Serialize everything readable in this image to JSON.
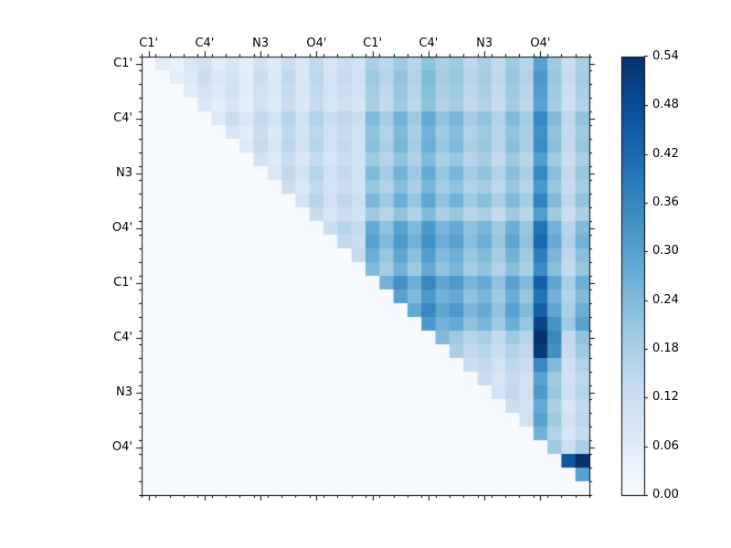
{
  "figure": {
    "background": "#ffffff",
    "axis_color": "#000000"
  },
  "chart_data": {
    "type": "heatmap",
    "title": "",
    "xlabel": "",
    "ylabel": "",
    "grid": false,
    "legend_position": "colorbar-right",
    "x_tick_labels": [
      "C1'",
      "C4'",
      "N3",
      "O4'",
      "C1'",
      "C4'",
      "N3",
      "O4'"
    ],
    "y_tick_labels": [
      "C1'",
      "C4'",
      "N3",
      "O4'",
      "C1'",
      "C4'",
      "N3",
      "O4'"
    ],
    "n_cells": 32,
    "vmin": 0.0,
    "vmax": 0.54,
    "colormap_name": "Blues",
    "colormap_stops": [
      [
        0.0,
        "#f7fbff"
      ],
      [
        0.125,
        "#deebf7"
      ],
      [
        0.25,
        "#c6dbef"
      ],
      [
        0.375,
        "#9ecae1"
      ],
      [
        0.5,
        "#6baed6"
      ],
      [
        0.625,
        "#4292c6"
      ],
      [
        0.75,
        "#2171b5"
      ],
      [
        0.875,
        "#08519c"
      ],
      [
        1.0,
        "#08306b"
      ]
    ],
    "colorbar_tick_labels": [
      "0.00",
      "0.06",
      "0.12",
      "0.18",
      "0.24",
      "0.30",
      "0.36",
      "0.42",
      "0.48",
      "0.54"
    ],
    "matrix": [
      [
        0,
        0.06,
        0.04,
        0.08,
        0.1,
        0.06,
        0.09,
        0.05,
        0.1,
        0.07,
        0.12,
        0.08,
        0.14,
        0.09,
        0.12,
        0.1,
        0.18,
        0.15,
        0.2,
        0.16,
        0.22,
        0.18,
        0.2,
        0.15,
        0.18,
        0.14,
        0.2,
        0.16,
        0.3,
        0.2,
        0.12,
        0.18
      ],
      [
        0,
        0,
        0.05,
        0.07,
        0.12,
        0.08,
        0.1,
        0.06,
        0.12,
        0.08,
        0.14,
        0.09,
        0.15,
        0.1,
        0.13,
        0.11,
        0.2,
        0.16,
        0.22,
        0.17,
        0.24,
        0.19,
        0.21,
        0.16,
        0.19,
        0.15,
        0.21,
        0.17,
        0.32,
        0.21,
        0.13,
        0.19
      ],
      [
        0,
        0,
        0,
        0.06,
        0.1,
        0.07,
        0.11,
        0.06,
        0.11,
        0.08,
        0.13,
        0.09,
        0.14,
        0.1,
        0.12,
        0.1,
        0.19,
        0.15,
        0.21,
        0.16,
        0.23,
        0.18,
        0.2,
        0.15,
        0.18,
        0.14,
        0.2,
        0.16,
        0.31,
        0.2,
        0.12,
        0.18
      ],
      [
        0,
        0,
        0,
        0,
        0.08,
        0.05,
        0.09,
        0.05,
        0.1,
        0.07,
        0.12,
        0.08,
        0.13,
        0.09,
        0.11,
        0.09,
        0.18,
        0.14,
        0.2,
        0.15,
        0.22,
        0.17,
        0.19,
        0.14,
        0.17,
        0.13,
        0.19,
        0.15,
        0.3,
        0.19,
        0.11,
        0.17
      ],
      [
        0,
        0,
        0,
        0,
        0,
        0.07,
        0.12,
        0.08,
        0.14,
        0.1,
        0.16,
        0.11,
        0.17,
        0.12,
        0.15,
        0.12,
        0.24,
        0.19,
        0.26,
        0.2,
        0.28,
        0.22,
        0.25,
        0.19,
        0.22,
        0.17,
        0.24,
        0.19,
        0.36,
        0.24,
        0.15,
        0.22
      ],
      [
        0,
        0,
        0,
        0,
        0,
        0,
        0.09,
        0.06,
        0.12,
        0.08,
        0.14,
        0.1,
        0.15,
        0.11,
        0.13,
        0.11,
        0.22,
        0.17,
        0.24,
        0.18,
        0.26,
        0.2,
        0.23,
        0.17,
        0.2,
        0.16,
        0.22,
        0.18,
        0.34,
        0.22,
        0.14,
        0.2
      ],
      [
        0,
        0,
        0,
        0,
        0,
        0,
        0,
        0.07,
        0.13,
        0.09,
        0.15,
        0.1,
        0.16,
        0.11,
        0.14,
        0.11,
        0.23,
        0.18,
        0.25,
        0.19,
        0.27,
        0.21,
        0.24,
        0.18,
        0.21,
        0.16,
        0.23,
        0.18,
        0.35,
        0.23,
        0.14,
        0.21
      ],
      [
        0,
        0,
        0,
        0,
        0,
        0,
        0,
        0,
        0.1,
        0.07,
        0.12,
        0.08,
        0.13,
        0.09,
        0.12,
        0.1,
        0.2,
        0.16,
        0.22,
        0.17,
        0.24,
        0.18,
        0.21,
        0.16,
        0.19,
        0.14,
        0.2,
        0.16,
        0.31,
        0.2,
        0.12,
        0.18
      ],
      [
        0,
        0,
        0,
        0,
        0,
        0,
        0,
        0,
        0,
        0.08,
        0.14,
        0.1,
        0.16,
        0.11,
        0.14,
        0.11,
        0.24,
        0.19,
        0.26,
        0.2,
        0.28,
        0.21,
        0.25,
        0.19,
        0.22,
        0.17,
        0.23,
        0.18,
        0.36,
        0.23,
        0.14,
        0.21
      ],
      [
        0,
        0,
        0,
        0,
        0,
        0,
        0,
        0,
        0,
        0,
        0.12,
        0.08,
        0.14,
        0.1,
        0.12,
        0.1,
        0.21,
        0.17,
        0.23,
        0.18,
        0.25,
        0.19,
        0.22,
        0.17,
        0.19,
        0.15,
        0.21,
        0.16,
        0.32,
        0.21,
        0.13,
        0.19
      ],
      [
        0,
        0,
        0,
        0,
        0,
        0,
        0,
        0,
        0,
        0,
        0,
        0.1,
        0.16,
        0.11,
        0.15,
        0.12,
        0.25,
        0.2,
        0.27,
        0.21,
        0.29,
        0.22,
        0.26,
        0.2,
        0.23,
        0.18,
        0.24,
        0.19,
        0.37,
        0.24,
        0.15,
        0.22
      ],
      [
        0,
        0,
        0,
        0,
        0,
        0,
        0,
        0,
        0,
        0,
        0,
        0,
        0.13,
        0.09,
        0.12,
        0.1,
        0.2,
        0.16,
        0.22,
        0.17,
        0.24,
        0.18,
        0.21,
        0.16,
        0.18,
        0.14,
        0.2,
        0.16,
        0.31,
        0.2,
        0.12,
        0.18
      ],
      [
        0,
        0,
        0,
        0,
        0,
        0,
        0,
        0,
        0,
        0,
        0,
        0,
        0,
        0.12,
        0.16,
        0.13,
        0.28,
        0.22,
        0.3,
        0.24,
        0.32,
        0.25,
        0.28,
        0.22,
        0.25,
        0.2,
        0.27,
        0.21,
        0.4,
        0.26,
        0.16,
        0.24
      ],
      [
        0,
        0,
        0,
        0,
        0,
        0,
        0,
        0,
        0,
        0,
        0,
        0,
        0,
        0,
        0.14,
        0.12,
        0.3,
        0.24,
        0.32,
        0.26,
        0.34,
        0.27,
        0.3,
        0.23,
        0.27,
        0.21,
        0.29,
        0.22,
        0.42,
        0.28,
        0.17,
        0.26
      ],
      [
        0,
        0,
        0,
        0,
        0,
        0,
        0,
        0,
        0,
        0,
        0,
        0,
        0,
        0,
        0,
        0.13,
        0.27,
        0.21,
        0.29,
        0.23,
        0.31,
        0.24,
        0.27,
        0.21,
        0.24,
        0.19,
        0.26,
        0.2,
        0.38,
        0.25,
        0.15,
        0.23
      ],
      [
        0,
        0,
        0,
        0,
        0,
        0,
        0,
        0,
        0,
        0,
        0,
        0,
        0,
        0,
        0,
        0,
        0.24,
        0.19,
        0.26,
        0.2,
        0.28,
        0.22,
        0.25,
        0.19,
        0.22,
        0.17,
        0.23,
        0.18,
        0.35,
        0.23,
        0.14,
        0.21
      ],
      [
        0,
        0,
        0,
        0,
        0,
        0,
        0,
        0,
        0,
        0,
        0,
        0,
        0,
        0,
        0,
        0,
        0,
        0.26,
        0.34,
        0.27,
        0.36,
        0.29,
        0.32,
        0.25,
        0.28,
        0.22,
        0.3,
        0.24,
        0.44,
        0.29,
        0.18,
        0.27
      ],
      [
        0,
        0,
        0,
        0,
        0,
        0,
        0,
        0,
        0,
        0,
        0,
        0,
        0,
        0,
        0,
        0,
        0,
        0,
        0.3,
        0.24,
        0.32,
        0.26,
        0.28,
        0.22,
        0.25,
        0.2,
        0.27,
        0.21,
        0.4,
        0.26,
        0.16,
        0.24
      ],
      [
        0,
        0,
        0,
        0,
        0,
        0,
        0,
        0,
        0,
        0,
        0,
        0,
        0,
        0,
        0,
        0,
        0,
        0,
        0,
        0.28,
        0.36,
        0.29,
        0.32,
        0.25,
        0.28,
        0.22,
        0.3,
        0.24,
        0.44,
        0.29,
        0.18,
        0.27
      ],
      [
        0,
        0,
        0,
        0,
        0,
        0,
        0,
        0,
        0,
        0,
        0,
        0,
        0,
        0,
        0,
        0,
        0,
        0,
        0,
        0,
        0.32,
        0.26,
        0.28,
        0.22,
        0.25,
        0.2,
        0.27,
        0.21,
        0.5,
        0.33,
        0.2,
        0.3
      ],
      [
        0,
        0,
        0,
        0,
        0,
        0,
        0,
        0,
        0,
        0,
        0,
        0,
        0,
        0,
        0,
        0,
        0,
        0,
        0,
        0,
        0,
        0.24,
        0.2,
        0.16,
        0.18,
        0.14,
        0.2,
        0.16,
        0.54,
        0.36,
        0.14,
        0.22
      ],
      [
        0,
        0,
        0,
        0,
        0,
        0,
        0,
        0,
        0,
        0,
        0,
        0,
        0,
        0,
        0,
        0,
        0,
        0,
        0,
        0,
        0,
        0,
        0.18,
        0.14,
        0.16,
        0.12,
        0.17,
        0.14,
        0.52,
        0.34,
        0.13,
        0.2
      ],
      [
        0,
        0,
        0,
        0,
        0,
        0,
        0,
        0,
        0,
        0,
        0,
        0,
        0,
        0,
        0,
        0,
        0,
        0,
        0,
        0,
        0,
        0,
        0,
        0.12,
        0.14,
        0.1,
        0.15,
        0.12,
        0.36,
        0.24,
        0.11,
        0.17
      ],
      [
        0,
        0,
        0,
        0,
        0,
        0,
        0,
        0,
        0,
        0,
        0,
        0,
        0,
        0,
        0,
        0,
        0,
        0,
        0,
        0,
        0,
        0,
        0,
        0,
        0.12,
        0.09,
        0.13,
        0.1,
        0.3,
        0.2,
        0.1,
        0.15
      ],
      [
        0,
        0,
        0,
        0,
        0,
        0,
        0,
        0,
        0,
        0,
        0,
        0,
        0,
        0,
        0,
        0,
        0,
        0,
        0,
        0,
        0,
        0,
        0,
        0,
        0,
        0.1,
        0.14,
        0.11,
        0.32,
        0.21,
        0.11,
        0.16
      ],
      [
        0,
        0,
        0,
        0,
        0,
        0,
        0,
        0,
        0,
        0,
        0,
        0,
        0,
        0,
        0,
        0,
        0,
        0,
        0,
        0,
        0,
        0,
        0,
        0,
        0,
        0,
        0.12,
        0.1,
        0.28,
        0.18,
        0.09,
        0.14
      ],
      [
        0,
        0,
        0,
        0,
        0,
        0,
        0,
        0,
        0,
        0,
        0,
        0,
        0,
        0,
        0,
        0,
        0,
        0,
        0,
        0,
        0,
        0,
        0,
        0,
        0,
        0,
        0,
        0.11,
        0.3,
        0.2,
        0.1,
        0.15
      ],
      [
        0,
        0,
        0,
        0,
        0,
        0,
        0,
        0,
        0,
        0,
        0,
        0,
        0,
        0,
        0,
        0,
        0,
        0,
        0,
        0,
        0,
        0,
        0,
        0,
        0,
        0,
        0,
        0,
        0.26,
        0.17,
        0.09,
        0.13
      ],
      [
        0,
        0,
        0,
        0,
        0,
        0,
        0,
        0,
        0,
        0,
        0,
        0,
        0,
        0,
        0,
        0,
        0,
        0,
        0,
        0,
        0,
        0,
        0,
        0,
        0,
        0,
        0,
        0,
        0,
        0.2,
        0.12,
        0.18
      ],
      [
        0,
        0,
        0,
        0,
        0,
        0,
        0,
        0,
        0,
        0,
        0,
        0,
        0,
        0,
        0,
        0,
        0,
        0,
        0,
        0,
        0,
        0,
        0,
        0,
        0,
        0,
        0,
        0,
        0,
        0,
        0.46,
        0.54
      ],
      [
        0,
        0,
        0,
        0,
        0,
        0,
        0,
        0,
        0,
        0,
        0,
        0,
        0,
        0,
        0,
        0,
        0,
        0,
        0,
        0,
        0,
        0,
        0,
        0,
        0,
        0,
        0,
        0,
        0,
        0,
        0,
        0.3
      ],
      [
        0,
        0,
        0,
        0,
        0,
        0,
        0,
        0,
        0,
        0,
        0,
        0,
        0,
        0,
        0,
        0,
        0,
        0,
        0,
        0,
        0,
        0,
        0,
        0,
        0,
        0,
        0,
        0,
        0,
        0,
        0,
        0
      ]
    ]
  }
}
